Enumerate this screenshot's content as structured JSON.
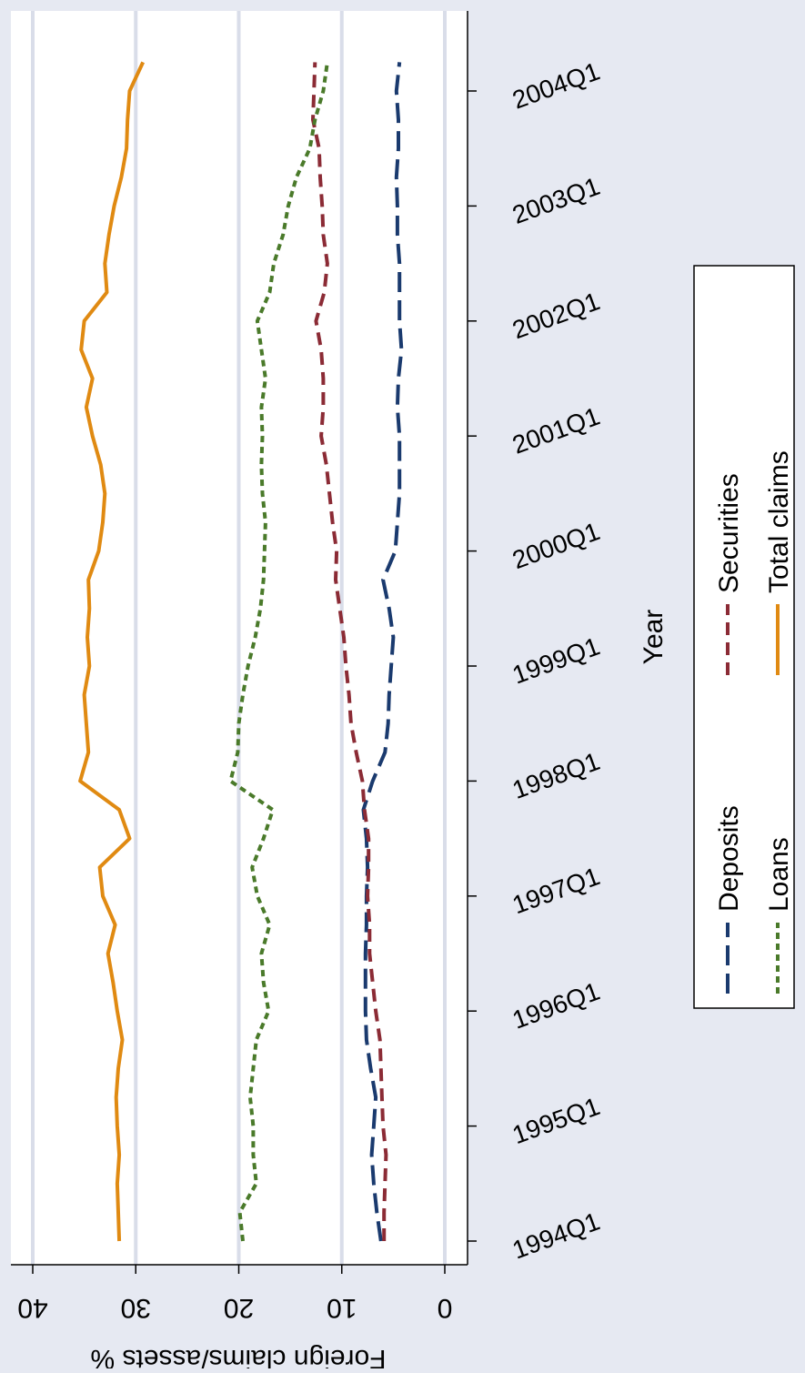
{
  "chart_data": {
    "type": "line",
    "title": "",
    "xlabel": "Year",
    "ylabel": "Foreign claims/assets %",
    "ylim": [
      0,
      40
    ],
    "y_ticks": [
      "0",
      "10",
      "20",
      "30",
      "40"
    ],
    "x_ticks": [
      "1994Q1",
      "1995Q1",
      "1996Q1",
      "1997Q1",
      "1998Q1",
      "1999Q1",
      "2000Q1",
      "2001Q1",
      "2002Q1",
      "2003Q1",
      "2004Q1"
    ],
    "grid": true,
    "legend_position": "bottom",
    "quarters": [
      "1994Q1",
      "1994Q2",
      "1994Q3",
      "1994Q4",
      "1995Q1",
      "1995Q2",
      "1995Q3",
      "1995Q4",
      "1996Q1",
      "1996Q2",
      "1996Q3",
      "1996Q4",
      "1997Q1",
      "1997Q2",
      "1997Q3",
      "1997Q4",
      "1998Q1",
      "1998Q2",
      "1998Q3",
      "1998Q4",
      "1999Q1",
      "1999Q2",
      "1999Q3",
      "1999Q4",
      "2000Q1",
      "2000Q2",
      "2000Q3",
      "2000Q4",
      "2001Q1",
      "2001Q2",
      "2001Q3",
      "2001Q4",
      "2002Q1",
      "2002Q2",
      "2002Q3",
      "2002Q4",
      "2003Q1",
      "2003Q2",
      "2003Q3",
      "2003Q4",
      "2004Q1",
      "2004Q2"
    ],
    "series": [
      {
        "name": "Deposits",
        "color": "#1a3a6e",
        "dash": "long-dash",
        "values": [
          6.2,
          6.6,
          6.9,
          7.1,
          6.9,
          6.7,
          7.2,
          7.6,
          7.7,
          7.7,
          7.7,
          7.6,
          7.6,
          7.5,
          7.6,
          7.9,
          7.0,
          5.8,
          5.5,
          5.4,
          5.2,
          5.0,
          5.4,
          6.0,
          4.8,
          4.6,
          4.4,
          4.4,
          4.4,
          4.6,
          4.5,
          4.2,
          4.4,
          4.4,
          4.4,
          4.6,
          4.6,
          4.7,
          4.5,
          4.5,
          4.7,
          4.4
        ]
      },
      {
        "name": "Securities",
        "color": "#8b2b35",
        "dash": "medium-dash",
        "values": [
          5.9,
          5.9,
          5.8,
          5.7,
          6.0,
          6.1,
          6.2,
          6.3,
          6.7,
          7.0,
          7.3,
          7.3,
          7.5,
          7.4,
          7.4,
          7.8,
          8.0,
          8.6,
          9.1,
          9.3,
          9.6,
          9.8,
          10.2,
          10.6,
          10.5,
          10.9,
          11.2,
          11.5,
          12.0,
          11.8,
          11.8,
          12.0,
          12.5,
          11.7,
          11.4,
          11.8,
          11.9,
          12.1,
          12.2,
          12.8,
          12.7,
          12.6
        ]
      },
      {
        "name": "Loans",
        "color": "#4a7a2a",
        "dash": "short-dash",
        "values": [
          19.6,
          19.9,
          18.3,
          18.6,
          18.6,
          18.9,
          18.6,
          18.3,
          17.1,
          17.6,
          17.8,
          17.0,
          18.2,
          18.7,
          17.6,
          16.7,
          20.8,
          20.1,
          20.0,
          19.6,
          19.1,
          18.4,
          17.9,
          17.6,
          17.5,
          17.4,
          17.7,
          17.8,
          17.7,
          17.8,
          17.4,
          17.8,
          18.2,
          17.0,
          16.6,
          15.7,
          15.2,
          14.4,
          13.1,
          12.6,
          11.8,
          11.4
        ]
      },
      {
        "name": "Total claims",
        "color": "#e08a12",
        "dash": "solid",
        "values": [
          31.6,
          31.7,
          31.8,
          31.6,
          31.8,
          31.9,
          31.7,
          31.3,
          31.8,
          32.2,
          32.7,
          32.0,
          33.2,
          33.5,
          30.6,
          31.6,
          35.4,
          34.6,
          34.8,
          35.0,
          34.5,
          34.7,
          34.5,
          34.6,
          33.6,
          33.2,
          33.0,
          33.4,
          34.2,
          34.8,
          34.2,
          35.3,
          35.0,
          32.8,
          33.0,
          32.6,
          32.1,
          31.4,
          30.9,
          30.8,
          30.6,
          29.3
        ]
      }
    ]
  }
}
